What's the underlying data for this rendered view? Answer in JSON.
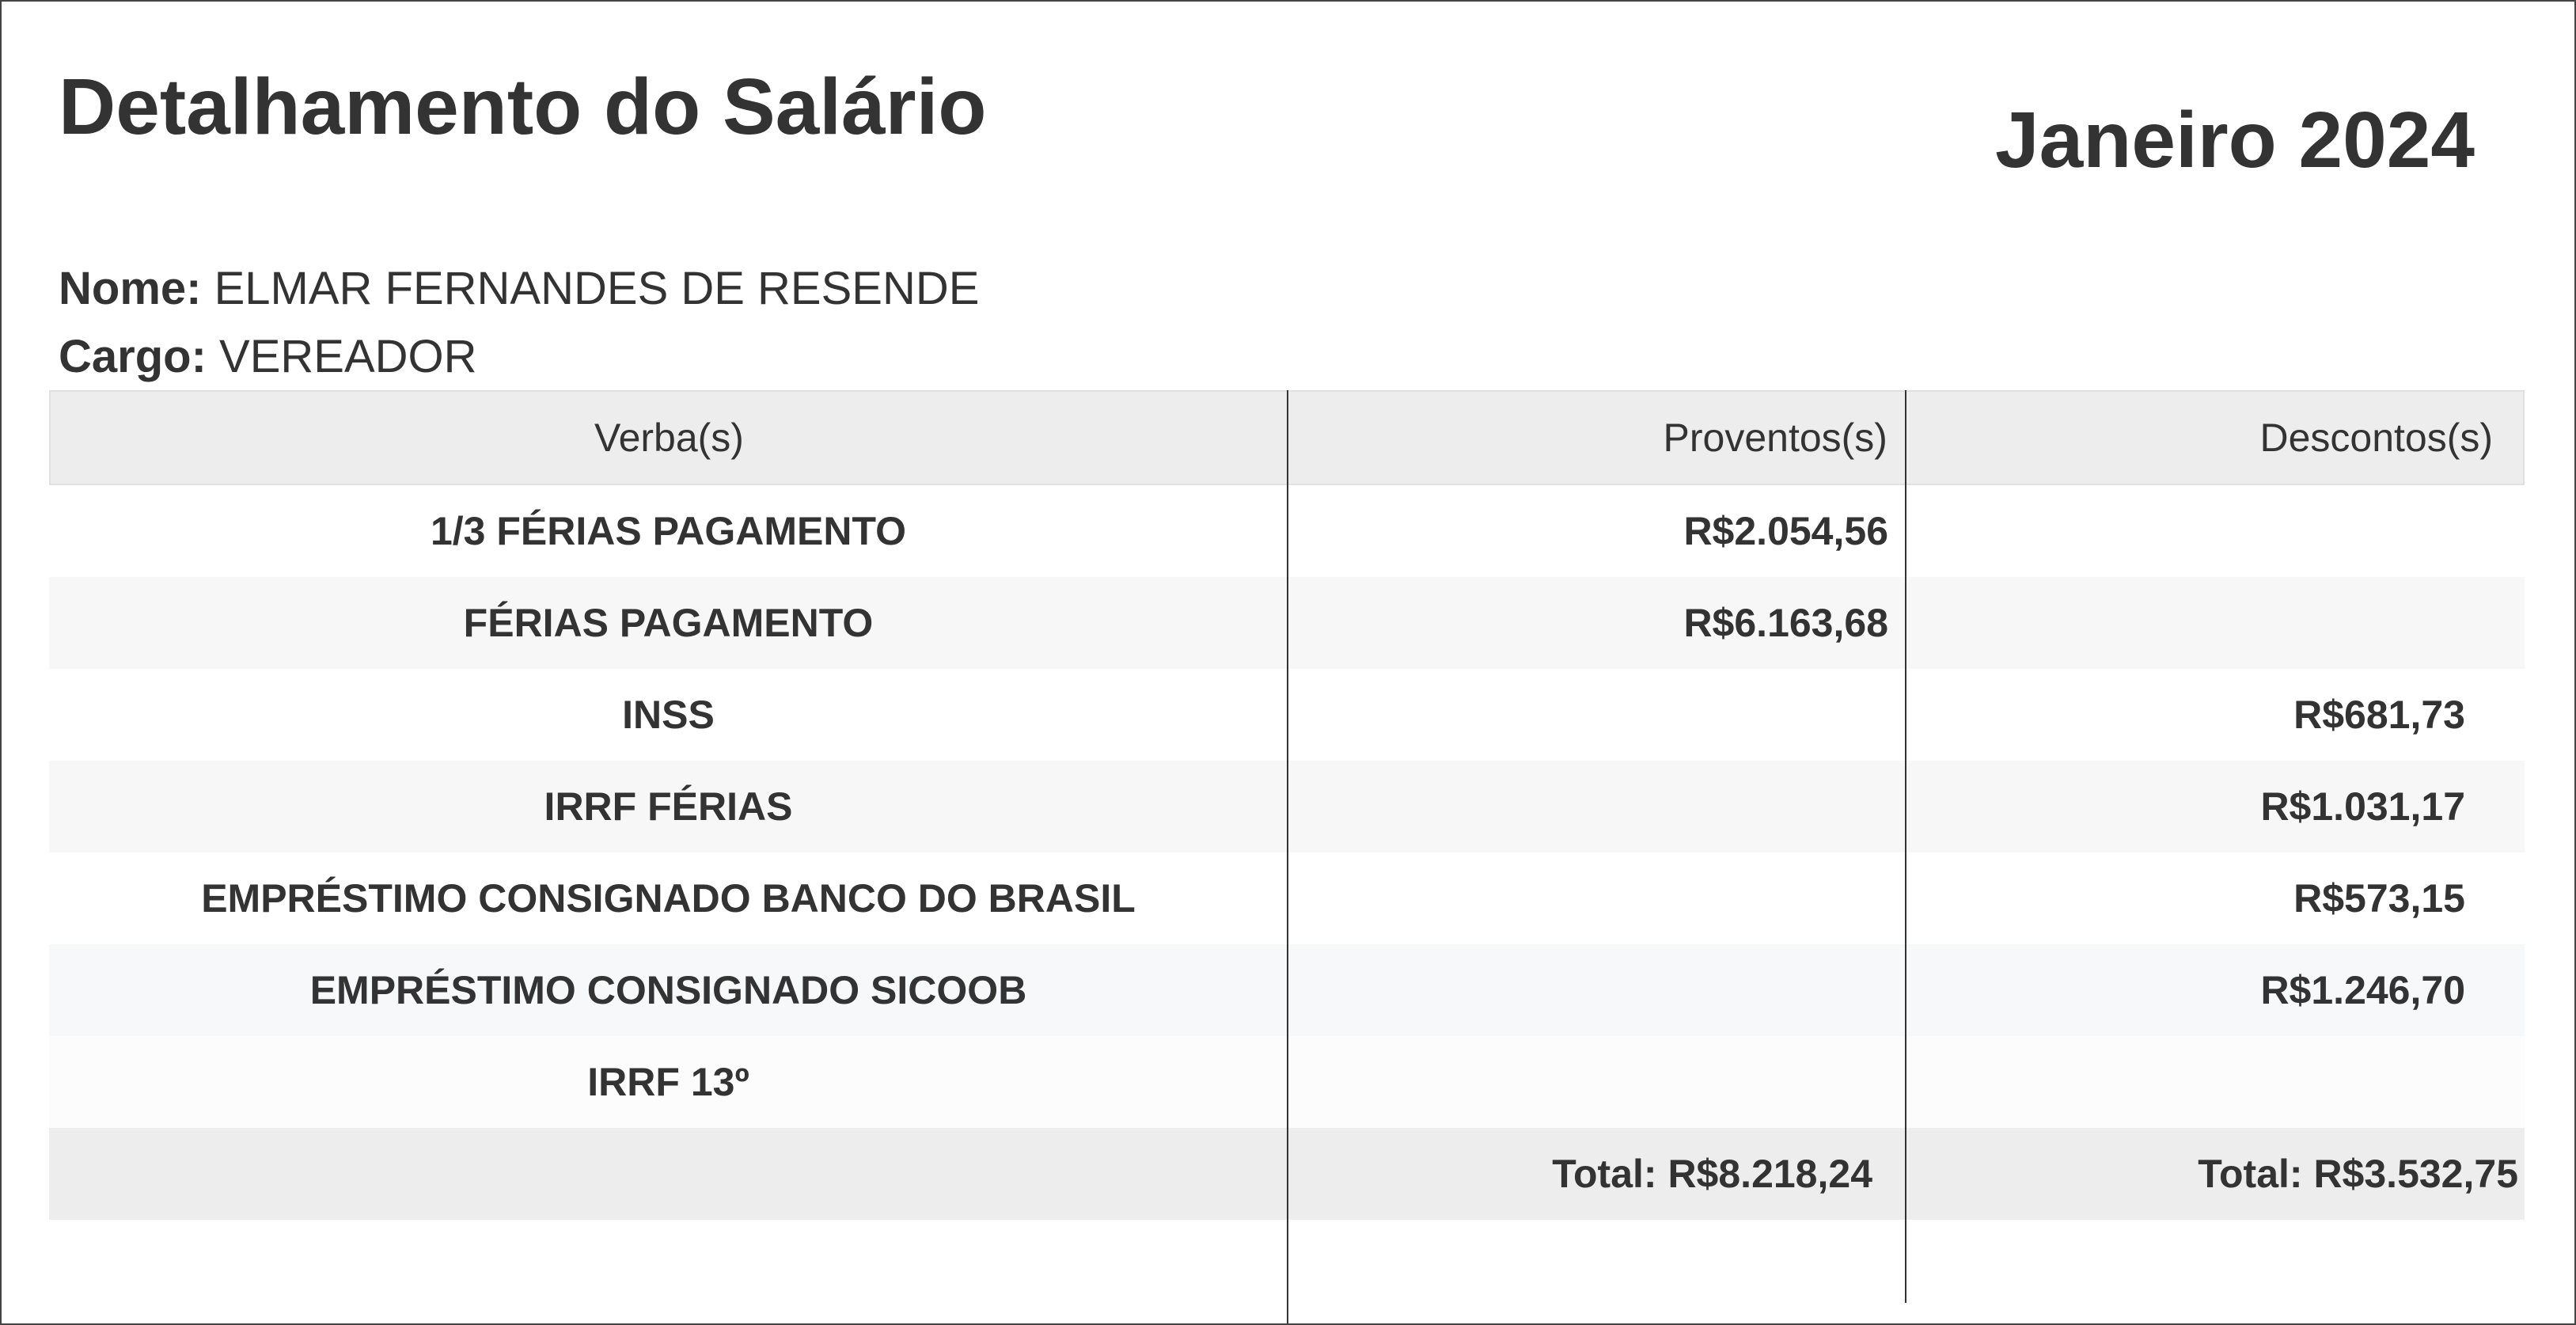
{
  "header": {
    "title": "Detalhamento do Salário",
    "period": "Janeiro 2024"
  },
  "employee": {
    "name_label": "Nome:",
    "name": "ELMAR FERNANDES DE RESENDE",
    "role_label": "Cargo:",
    "role": "VEREADOR"
  },
  "table": {
    "columns": [
      "Verba(s)",
      "Proventos(s)",
      "Descontos(s)"
    ],
    "rows": [
      {
        "verba": "1/3 FÉRIAS PAGAMENTO",
        "proventos": "R$2.054,56",
        "descontos": ""
      },
      {
        "verba": "FÉRIAS PAGAMENTO",
        "proventos": "R$6.163,68",
        "descontos": ""
      },
      {
        "verba": "INSS",
        "proventos": "",
        "descontos": "R$681,73"
      },
      {
        "verba": "IRRF FÉRIAS",
        "proventos": "",
        "descontos": "R$1.031,17"
      },
      {
        "verba": "EMPRÉSTIMO CONSIGNADO BANCO DO BRASIL",
        "proventos": "",
        "descontos": "R$573,15"
      },
      {
        "verba": "EMPRÉSTIMO CONSIGNADO SICOOB",
        "proventos": "",
        "descontos": "R$1.246,70"
      },
      {
        "verba": "IRRF 13º",
        "proventos": "",
        "descontos": ""
      }
    ],
    "totals": {
      "proventos": "Total: R$8.218,24",
      "descontos": "Total: R$3.532,75"
    }
  }
}
